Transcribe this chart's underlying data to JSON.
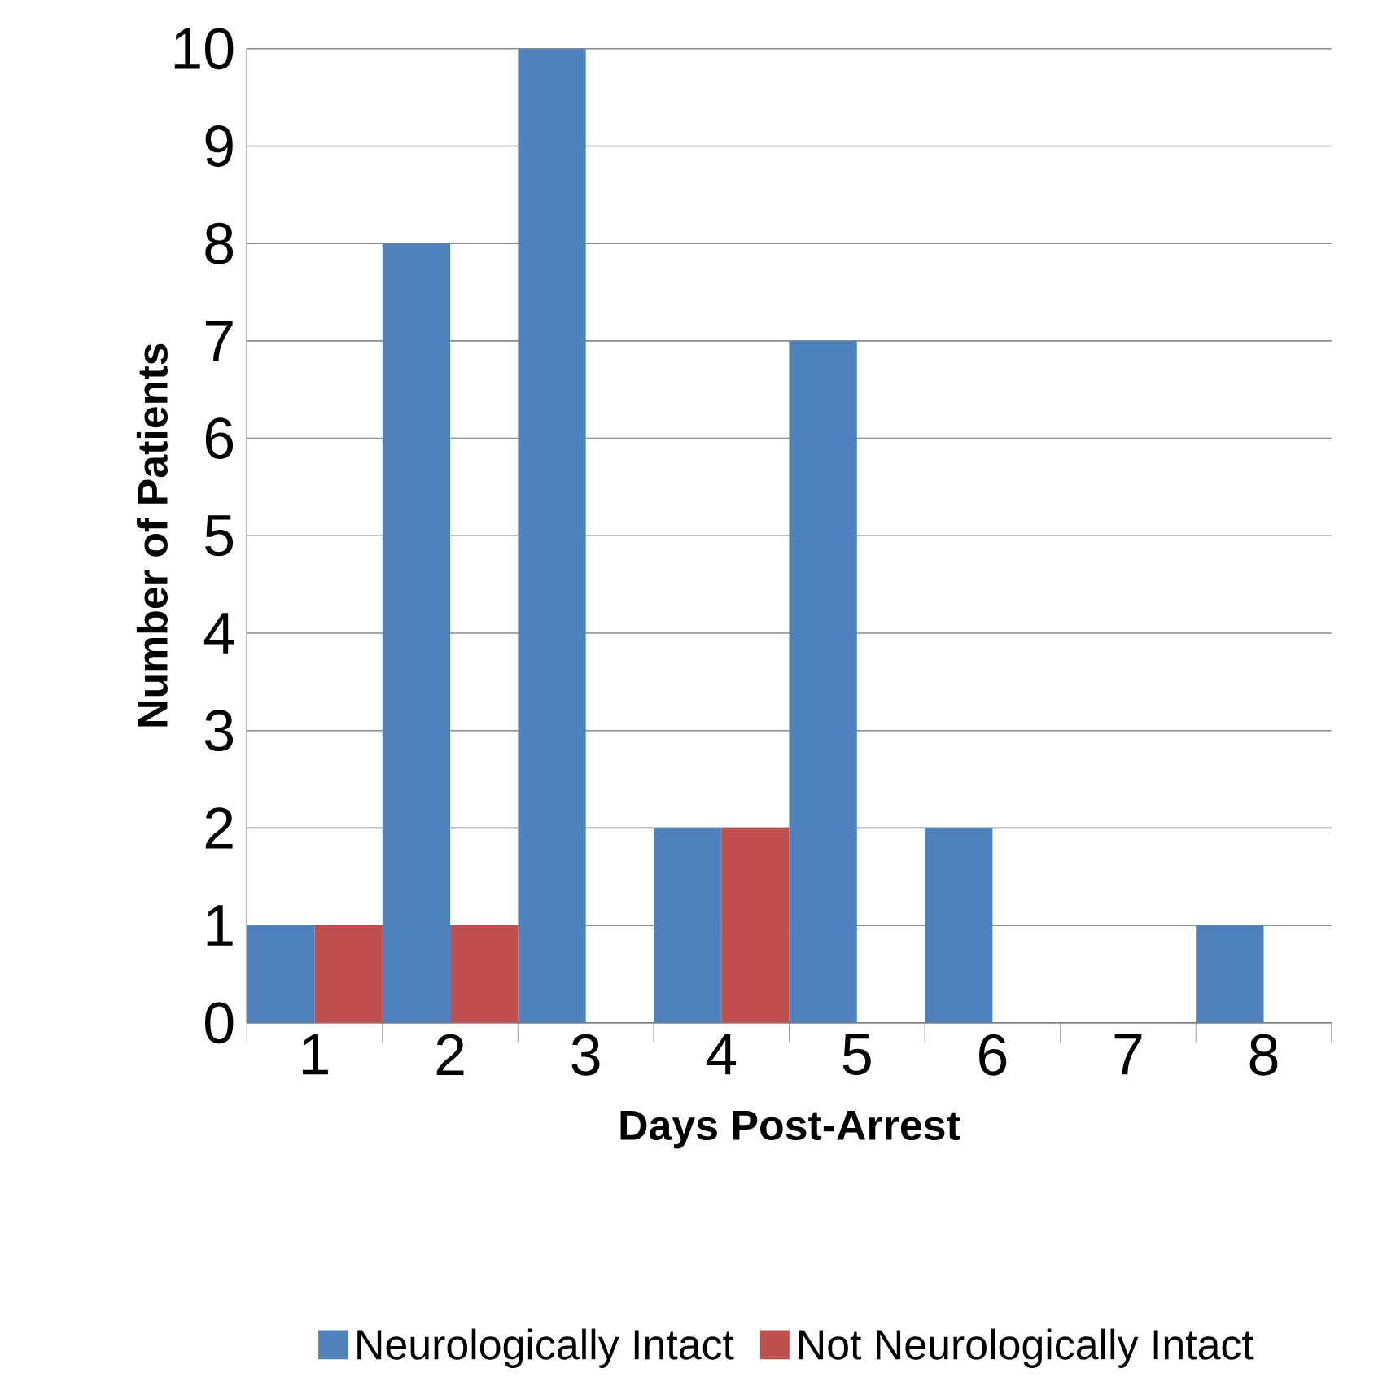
{
  "chart_data": {
    "type": "bar",
    "xlabel": "Days Post-Arrest",
    "ylabel": "Number of Patients",
    "categories": [
      "1",
      "2",
      "3",
      "4",
      "5",
      "6",
      "7",
      "8"
    ],
    "series": [
      {
        "name": "Neurologically Intact",
        "color": "#4f81bd",
        "values": [
          1,
          8,
          10,
          2,
          7,
          2,
          0,
          1
        ]
      },
      {
        "name": "Not Neurologically Intact",
        "color": "#c0504d",
        "values": [
          1,
          1,
          0,
          2,
          0,
          0,
          0,
          0
        ]
      }
    ],
    "ylim": [
      0,
      10
    ],
    "yticks": [
      0,
      1,
      2,
      3,
      4,
      5,
      6,
      7,
      8,
      9,
      10
    ],
    "grid": "y",
    "legend": "bottom"
  }
}
